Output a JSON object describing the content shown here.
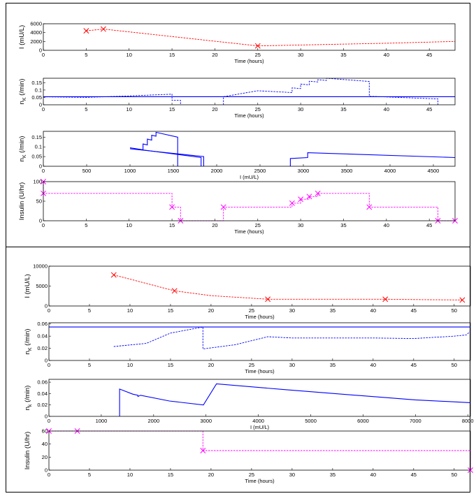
{
  "chart_data": [
    {
      "type": "line",
      "xlabel": "Time (hours)",
      "ylabel": "I (mU/L)",
      "xlim": [
        0,
        48
      ],
      "ylim": [
        0,
        6000
      ],
      "xticks": [
        0,
        5,
        10,
        15,
        20,
        25,
        30,
        35,
        40,
        45
      ],
      "yticks": [
        0,
        2000,
        4000,
        6000
      ],
      "series": [
        {
          "color": "#ff0000",
          "dash": "dashed",
          "x": [
            5,
            7,
            25,
            30,
            40,
            48
          ],
          "y": [
            4400,
            4800,
            1000,
            1200,
            1600,
            2000
          ],
          "markers_x": [
            5,
            7,
            25
          ],
          "markers_y": [
            4400,
            4800,
            1000
          ],
          "marker": "x"
        }
      ]
    },
    {
      "type": "line",
      "xlabel": "Time (hours)",
      "ylabel": "n_K (/min)",
      "xlim": [
        0,
        48
      ],
      "ylim": [
        0,
        0.18
      ],
      "xticks": [
        0,
        5,
        10,
        15,
        20,
        25,
        30,
        35,
        40,
        45
      ],
      "yticks": [
        0,
        0.05,
        0.1,
        0.15
      ],
      "series": [
        {
          "color": "#0000ff",
          "dash": "solid",
          "x": [
            0,
            48
          ],
          "y": [
            0.055,
            0.055
          ]
        },
        {
          "color": "#0000ff",
          "dash": "dashed",
          "x": [
            0,
            5,
            10,
            15,
            15,
            16,
            16
          ],
          "y": [
            0.054,
            0.05,
            0.06,
            0.072,
            0.03,
            0.03,
            0
          ]
        },
        {
          "color": "#0000ff",
          "dash": "dashed",
          "x": [
            21,
            21,
            25,
            29,
            29,
            30,
            30,
            31,
            31,
            32,
            32,
            33,
            33,
            38,
            38,
            46,
            46
          ],
          "y": [
            0,
            0.055,
            0.095,
            0.083,
            0.115,
            0.11,
            0.14,
            0.135,
            0.16,
            0.155,
            0.17,
            0.165,
            0.18,
            0.158,
            0.058,
            0.04,
            0
          ]
        }
      ]
    },
    {
      "type": "line",
      "xlabel": "I (mU/L)",
      "ylabel": "n_K (/min)",
      "xlim": [
        0,
        4750
      ],
      "ylim": [
        0,
        0.18
      ],
      "xticks": [
        0,
        500,
        1000,
        1500,
        2000,
        2500,
        3000,
        3500,
        4000,
        4500
      ],
      "yticks": [
        0,
        0.05,
        0.1,
        0.15
      ],
      "series": [
        {
          "color": "#0000ff",
          "dash": "solid",
          "x": [
            1000,
            1150,
            1150,
            1200,
            1200,
            1250,
            1250,
            1300,
            1300,
            1550,
            1550
          ],
          "y": [
            0.095,
            0.085,
            0.115,
            0.11,
            0.14,
            0.135,
            0.16,
            0.155,
            0.175,
            0.15,
            0
          ]
        },
        {
          "color": "#0000ff",
          "dash": "solid",
          "x": [
            1000,
            1850,
            1850
          ],
          "y": [
            0.09,
            0.05,
            0
          ]
        },
        {
          "color": "#0000ff",
          "dash": "solid",
          "x": [
            1050,
            1820,
            1820
          ],
          "y": [
            0.09,
            0.045,
            0
          ]
        },
        {
          "color": "#0000ff",
          "dash": "solid",
          "x": [
            2850,
            2850,
            3050,
            3050,
            4750
          ],
          "y": [
            0,
            0.04,
            0.045,
            0.07,
            0.045
          ]
        }
      ]
    },
    {
      "type": "line",
      "xlabel": "Time (hours)",
      "ylabel": "Insulin (U/hr)",
      "xlim": [
        0,
        48
      ],
      "ylim": [
        0,
        100
      ],
      "xticks": [
        0,
        5,
        10,
        15,
        20,
        25,
        30,
        35,
        40,
        45
      ],
      "yticks": [
        0,
        50,
        100
      ],
      "series": [
        {
          "color": "#ff00ff",
          "dash": "dashed",
          "x": [
            0,
            0,
            15,
            15,
            16,
            16,
            21,
            21,
            29,
            29,
            30,
            30,
            31,
            31,
            32,
            32,
            33,
            33,
            38,
            38,
            46,
            46,
            48
          ],
          "y": [
            100,
            70,
            70,
            35,
            35,
            0,
            0,
            35,
            35,
            45,
            45,
            55,
            55,
            62,
            62,
            70,
            70,
            70,
            70,
            35,
            35,
            0,
            0
          ],
          "markers_x": [
            0,
            0,
            15,
            16,
            21,
            29,
            30,
            31,
            32,
            38,
            46,
            48
          ],
          "markers_y": [
            100,
            70,
            35,
            0,
            35,
            45,
            55,
            62,
            70,
            35,
            0,
            0
          ],
          "marker": "x"
        }
      ]
    },
    {
      "type": "line",
      "xlabel": "Time (hours)",
      "ylabel": "I (mU/L)",
      "xlim": [
        0,
        52
      ],
      "ylim": [
        0,
        10000
      ],
      "xticks": [
        0,
        5,
        10,
        15,
        20,
        25,
        30,
        35,
        40,
        45,
        50
      ],
      "yticks": [
        0,
        5000,
        10000
      ],
      "series": [
        {
          "color": "#ff0000",
          "dash": "dashed",
          "x": [
            8,
            15.5,
            20,
            27,
            35,
            41.5,
            46,
            51
          ],
          "y": [
            7800,
            3800,
            2600,
            1700,
            1700,
            1700,
            1600,
            1500
          ],
          "markers_x": [
            8,
            15.5,
            27,
            41.5,
            51
          ],
          "markers_y": [
            7800,
            3800,
            1700,
            1700,
            1500
          ],
          "marker": "x"
        }
      ]
    },
    {
      "type": "line",
      "xlabel": "Time (hours)",
      "ylabel": "n_K (/min)",
      "xlim": [
        0,
        52
      ],
      "ylim": [
        0,
        0.062
      ],
      "xticks": [
        0,
        5,
        10,
        15,
        20,
        25,
        30,
        35,
        40,
        45,
        50
      ],
      "yticks": [
        0,
        0.02,
        0.04,
        0.06
      ],
      "series": [
        {
          "color": "#0000ff",
          "dash": "solid",
          "x": [
            0,
            52
          ],
          "y": [
            0.055,
            0.055
          ]
        },
        {
          "color": "#0000ff",
          "dash": "dashed",
          "x": [
            8,
            12,
            15,
            19,
            19,
            23,
            27,
            30,
            40,
            45,
            50,
            51.5,
            52
          ],
          "y": [
            0.023,
            0.028,
            0.045,
            0.055,
            0.019,
            0.026,
            0.039,
            0.037,
            0.037,
            0.036,
            0.04,
            0.042,
            0.048
          ]
        }
      ]
    },
    {
      "type": "line",
      "xlabel": "I (mU/L)",
      "ylabel": "n_k (/min)",
      "xlim": [
        0,
        8050
      ],
      "ylim": [
        0,
        0.065
      ],
      "xticks": [
        0,
        1000,
        2000,
        3000,
        4000,
        5000,
        6000,
        7000,
        8000
      ],
      "yticks": [
        0,
        0.02,
        0.04,
        0.06
      ],
      "series": [
        {
          "color": "#0000ff",
          "dash": "solid",
          "x": [
            1350,
            1350,
            1600,
            1700,
            1700,
            1750,
            2300,
            2950,
            2950,
            3200,
            4500,
            6000,
            7000,
            8050
          ],
          "y": [
            0,
            0.048,
            0.039,
            0.037,
            0.035,
            0.037,
            0.027,
            0.02,
            0.02,
            0.057,
            0.047,
            0.036,
            0.029,
            0.024
          ]
        }
      ]
    },
    {
      "type": "line",
      "xlabel": "Time (hours)",
      "ylabel": "Insulin (U/hr)",
      "xlim": [
        0,
        52
      ],
      "ylim": [
        0,
        60
      ],
      "xticks": [
        0,
        5,
        10,
        15,
        20,
        25,
        30,
        35,
        40,
        45,
        50
      ],
      "yticks": [
        0,
        20,
        40,
        60
      ],
      "series": [
        {
          "color": "#ff00ff",
          "dash": "dashed",
          "x": [
            0,
            19,
            19,
            52,
            52
          ],
          "y": [
            60,
            60,
            30,
            30,
            0
          ],
          "markers_x": [
            0,
            3.5,
            19,
            52
          ],
          "markers_y": [
            60,
            60,
            30,
            0
          ],
          "marker": "x"
        }
      ]
    }
  ]
}
